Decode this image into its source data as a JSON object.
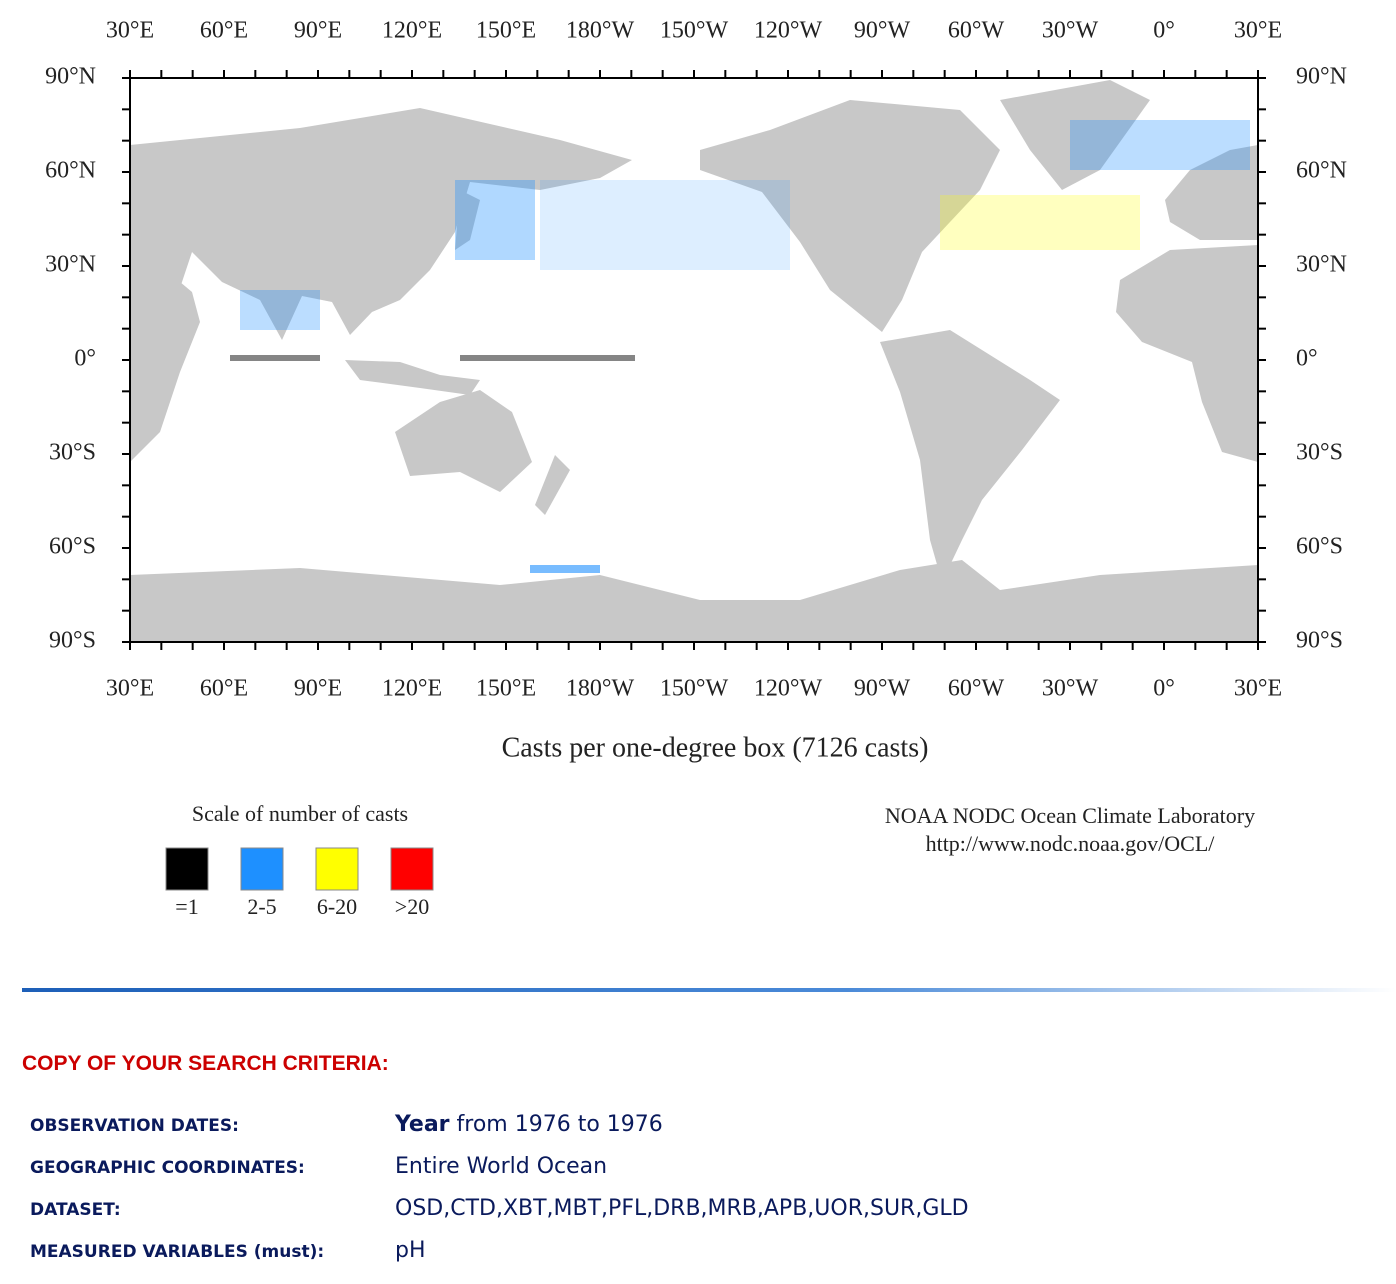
{
  "map": {
    "lon_labels": [
      "30°E",
      "60°E",
      "90°E",
      "120°E",
      "150°E",
      "180°W",
      "150°W",
      "120°W",
      "90°W",
      "60°W",
      "30°W",
      "0°",
      "30°E"
    ],
    "lat_labels": [
      "90°N",
      "60°N",
      "30°N",
      "0°",
      "30°S",
      "60°S",
      "90°S"
    ],
    "caption": "Casts per one-degree box (7126 casts)",
    "legend": {
      "title": "Scale of number of casts",
      "items": [
        {
          "label": "=1",
          "color": "#000000"
        },
        {
          "label": "2-5",
          "color": "#1e90ff"
        },
        {
          "label": "6-20",
          "color": "#ffff00"
        },
        {
          "label": ">20",
          "color": "#ff0000"
        }
      ]
    },
    "credit": [
      "NOAA NODC Ocean Climate Laboratory",
      "http://www.nodc.noaa.gov/OCL/"
    ]
  },
  "criteria": {
    "heading": "COPY OF YOUR SEARCH CRITERIA:",
    "rows": [
      {
        "label": "OBSERVATION DATES:",
        "value_bold": "Year",
        "value": "from 1976 to 1976"
      },
      {
        "label": "GEOGRAPHIC COORDINATES:",
        "value": "Entire World Ocean"
      },
      {
        "label": "DATASET:",
        "value": "OSD,CTD,XBT,MBT,PFL,DRB,MRB,APB,UOR,SUR,GLD"
      },
      {
        "label": "MEASURED VARIABLES (must):",
        "value": "pH"
      }
    ]
  }
}
